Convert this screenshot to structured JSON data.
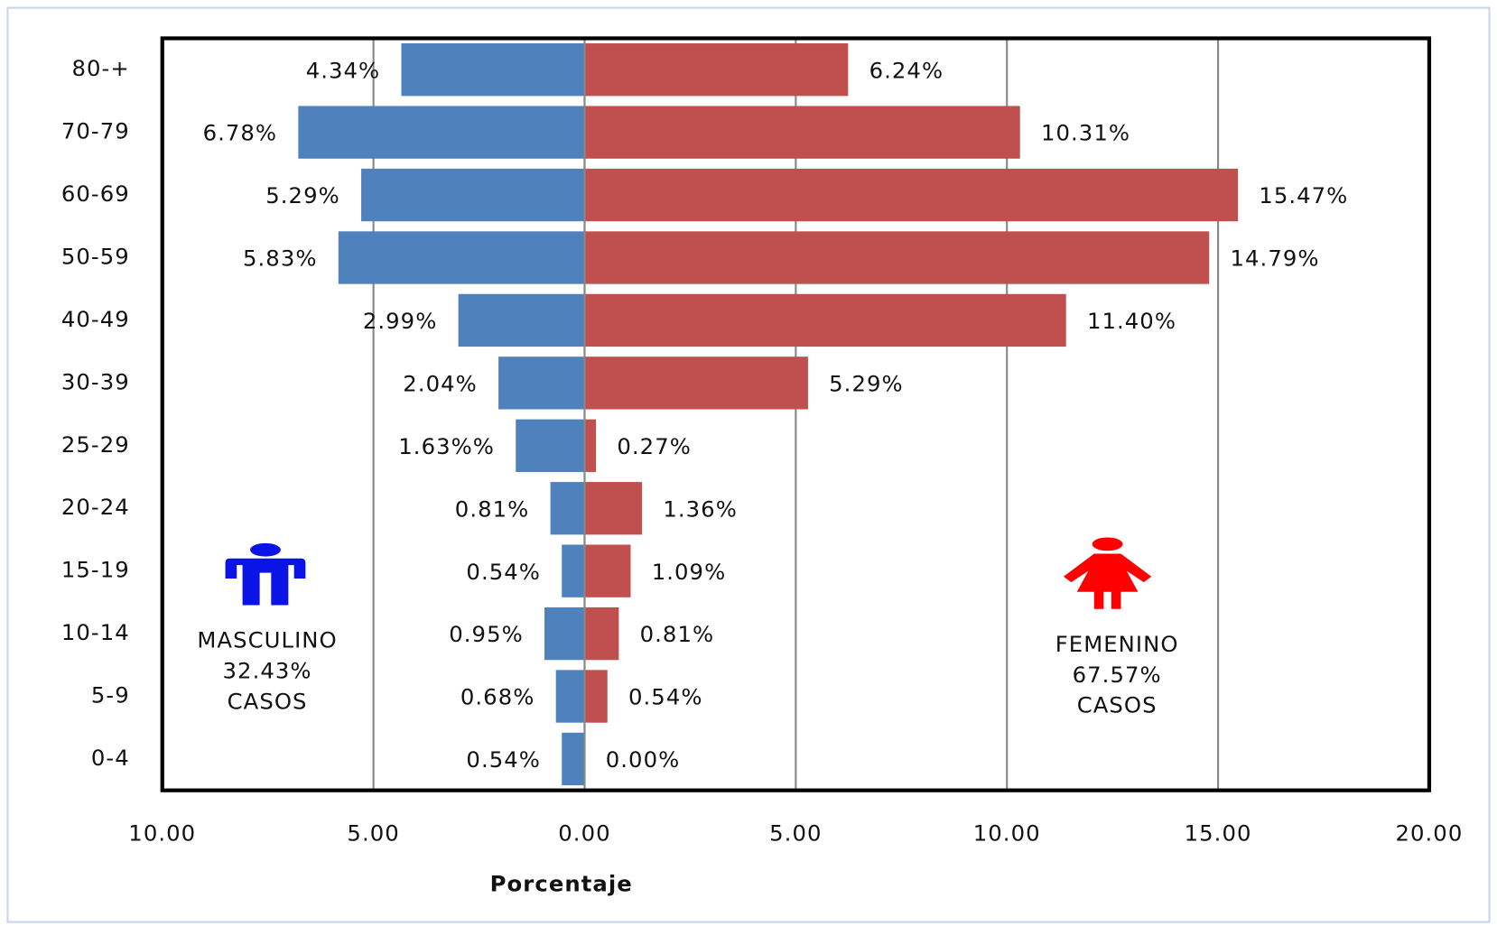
{
  "chart_data": {
    "type": "pyramid",
    "x_label": "Porcentaje",
    "categories": [
      "80-+",
      "70-79",
      "60-69",
      "50-59",
      "40-49",
      "30-39",
      "25-29",
      "20-24",
      "15-19",
      "10-14",
      "5-9",
      "0-4"
    ],
    "series": [
      {
        "color": "#4f81bd",
        "values": [
          -4.34,
          -6.78,
          -5.29,
          -5.83,
          -2.99,
          -2.04,
          -1.63,
          -0.81,
          -0.54,
          -0.95,
          -0.68,
          -0.54
        ],
        "value_labels": [
          "4.34%",
          "6.78%",
          "5.29%",
          "5.83%",
          "2.99%",
          "2.04%",
          "1.63%%",
          "0.81%",
          "0.54%",
          "0.95%",
          "0.68%",
          "0.54%"
        ]
      },
      {
        "color": "#c0504d",
        "values": [
          6.24,
          10.31,
          15.47,
          14.79,
          11.4,
          5.29,
          0.27,
          1.36,
          1.09,
          0.81,
          0.54,
          0.0
        ],
        "value_labels": [
          "6.24%",
          "10.31%",
          "15.47%",
          "14.79%",
          "11.40%",
          "5.29%",
          "0.27%",
          "1.36%",
          "1.09%",
          "0.81%",
          "0.54%",
          "0.00%"
        ]
      }
    ],
    "xlim": [
      -10,
      20
    ],
    "xticks": [
      {
        "value": -10,
        "label": "10.00"
      },
      {
        "value": -5,
        "label": "5.00"
      },
      {
        "value": 0,
        "label": "0.00"
      },
      {
        "value": 5,
        "label": "5.00"
      },
      {
        "value": 10,
        "label": "10.00"
      },
      {
        "value": 15,
        "label": "15.00"
      },
      {
        "value": 20,
        "label": "20.00"
      }
    ],
    "grid": true,
    "annotations": {
      "male": [
        "MASCULINO",
        "32.43%",
        "CASOS"
      ],
      "female": [
        "FEMENINO",
        "67.57%",
        "CASOS"
      ]
    }
  }
}
